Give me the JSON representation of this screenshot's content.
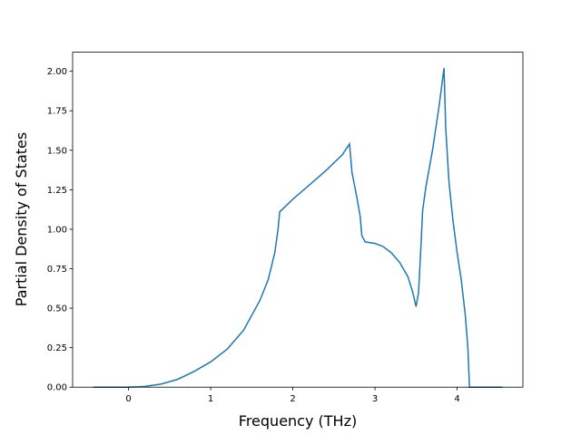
{
  "chart_data": {
    "type": "line",
    "xlabel": "Frequency (THz)",
    "ylabel": "Partial Density of States",
    "x": [
      -0.43,
      0,
      0.2,
      0.4,
      0.6,
      0.8,
      1.0,
      1.2,
      1.4,
      1.6,
      1.7,
      1.78,
      1.82,
      1.84,
      1.9,
      2.0,
      2.2,
      2.4,
      2.6,
      2.69,
      2.72,
      2.78,
      2.82,
      2.84,
      2.88,
      3.0,
      3.1,
      3.2,
      3.3,
      3.4,
      3.46,
      3.5,
      3.53,
      3.56,
      3.58,
      3.62,
      3.7,
      3.78,
      3.84,
      3.86,
      3.9,
      3.95,
      4.0,
      4.05,
      4.1,
      4.13,
      4.15,
      4.55
    ],
    "series": [
      {
        "name": "pdos",
        "color": "#1f77b4",
        "values": [
          0,
          0,
          0.005,
          0.02,
          0.05,
          0.1,
          0.16,
          0.24,
          0.36,
          0.55,
          0.68,
          0.85,
          1.0,
          1.11,
          1.14,
          1.19,
          1.28,
          1.37,
          1.47,
          1.54,
          1.36,
          1.2,
          1.08,
          0.96,
          0.92,
          0.91,
          0.89,
          0.85,
          0.79,
          0.7,
          0.6,
          0.51,
          0.6,
          0.9,
          1.12,
          1.27,
          1.5,
          1.78,
          2.02,
          1.65,
          1.3,
          1.05,
          0.85,
          0.68,
          0.45,
          0.25,
          0,
          0
        ]
      }
    ],
    "xlim": [
      -0.68,
      4.8
    ],
    "ylim": [
      0,
      2.121
    ],
    "xticks": [
      0,
      1,
      2,
      3,
      4
    ],
    "yticks": [
      {
        "value": 0,
        "label": "0.00"
      },
      {
        "value": 0.25,
        "label": "0.25"
      },
      {
        "value": 0.5,
        "label": "0.50"
      },
      {
        "value": 0.75,
        "label": "0.75"
      },
      {
        "value": 1,
        "label": "1.00"
      },
      {
        "value": 1.25,
        "label": "1.25"
      },
      {
        "value": 1.5,
        "label": "1.50"
      },
      {
        "value": 1.75,
        "label": "1.75"
      },
      {
        "value": 2,
        "label": "2.00"
      }
    ]
  }
}
